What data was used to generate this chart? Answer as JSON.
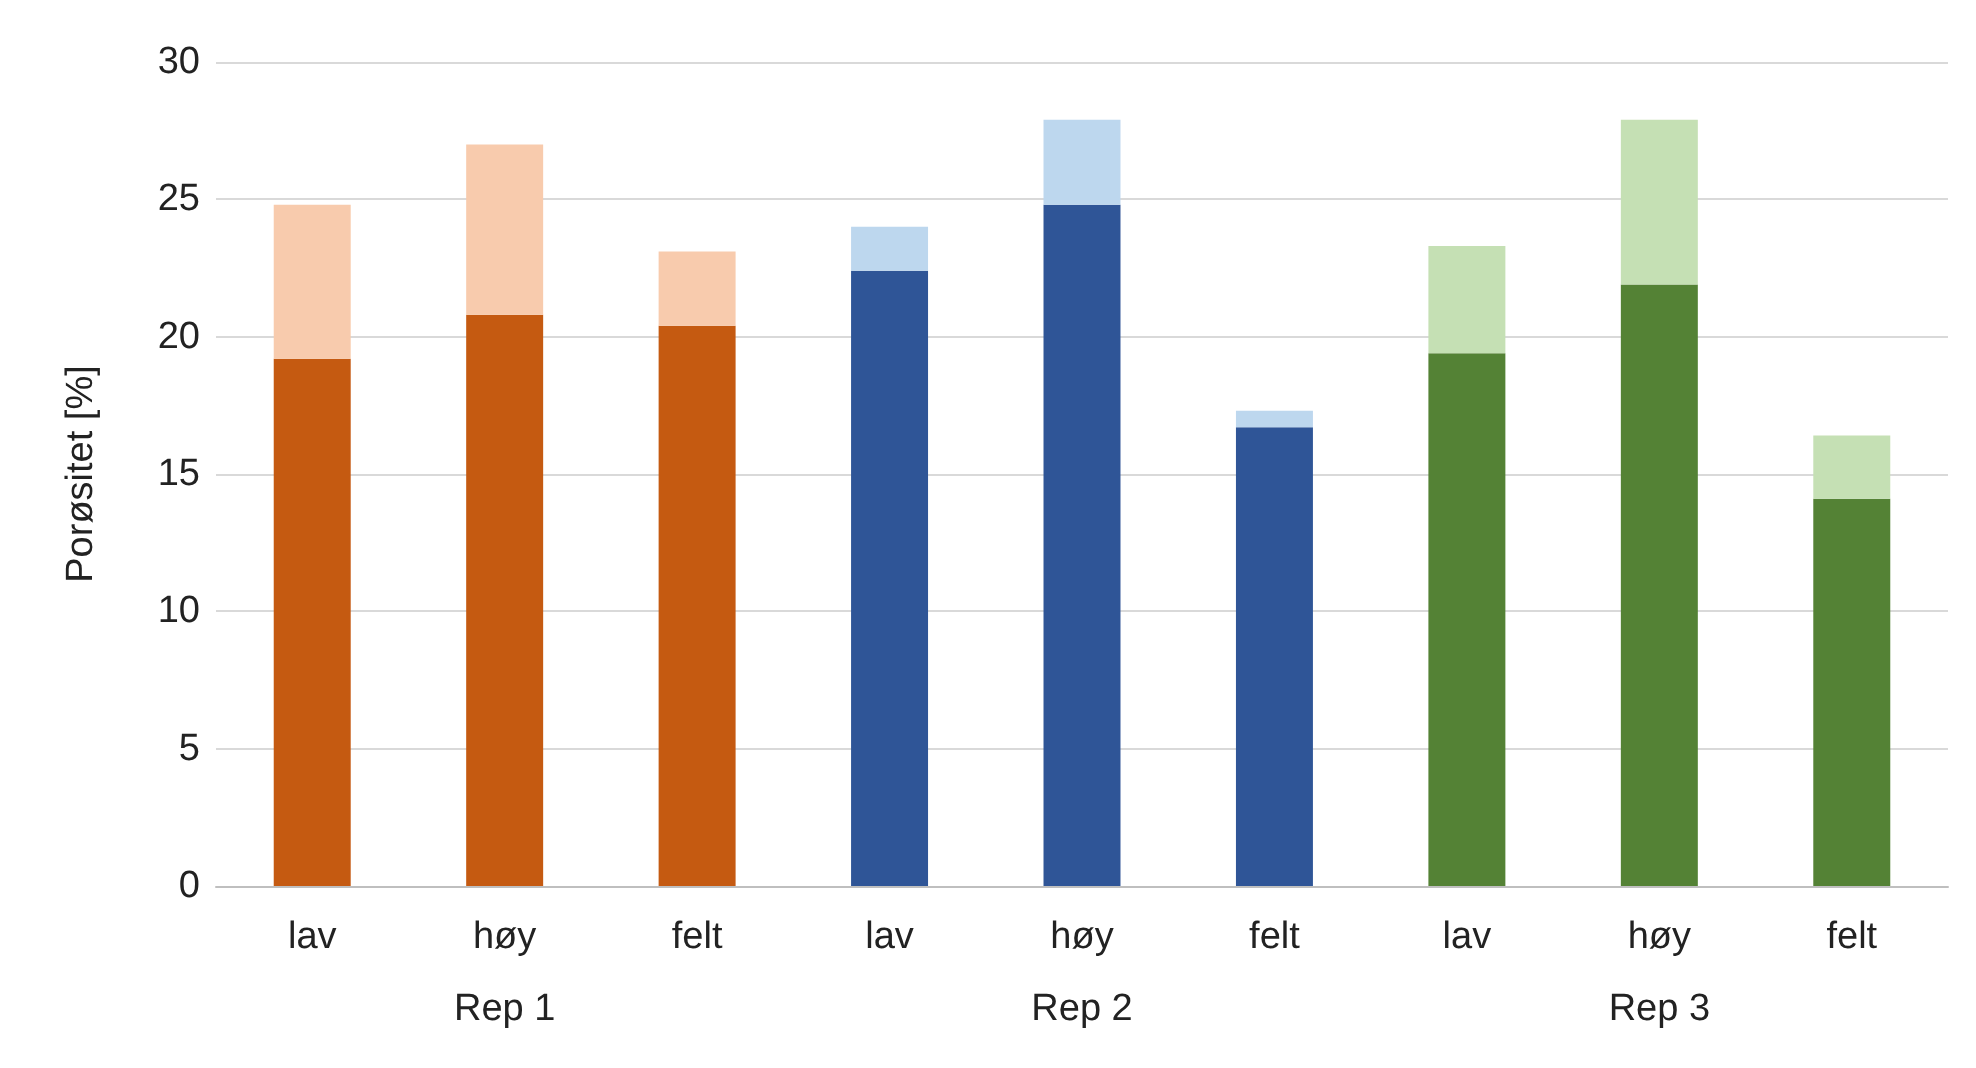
{
  "chart_data": {
    "type": "bar",
    "stacked": true,
    "ylabel": "Porøsitet [%]",
    "categories": [
      "lav",
      "høy",
      "felt",
      "lav",
      "høy",
      "felt",
      "lav",
      "høy",
      "felt"
    ],
    "annotations": [
      "Rep 1",
      "Rep 2",
      "Rep 3"
    ],
    "series": [
      {
        "colors": [
          "#c55a11",
          "#c55a11",
          "#c55a11",
          "#2f5597",
          "#2f5597",
          "#2f5597",
          "#548235",
          "#548235",
          "#548235"
        ],
        "values": [
          19.2,
          20.8,
          20.4,
          22.4,
          24.8,
          16.7,
          19.4,
          21.9,
          14.1
        ]
      },
      {
        "colors": [
          "#f8cbad",
          "#f8cbad",
          "#f8cbad",
          "#bdd7ee",
          "#bdd7ee",
          "#bdd7ee",
          "#c5e0b4",
          "#c5e0b4",
          "#c5e0b4"
        ],
        "values": [
          5.6,
          6.2,
          2.7,
          1.6,
          3.1,
          0.6,
          3.9,
          6.0,
          2.3
        ]
      }
    ],
    "ylim": [
      0,
      30
    ],
    "yticks": [
      0,
      5,
      10,
      15,
      20,
      25,
      30
    ],
    "grid": "y"
  }
}
